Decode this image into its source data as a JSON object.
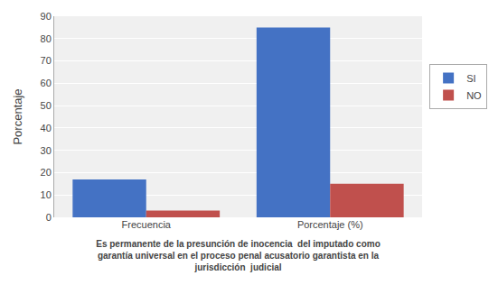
{
  "chart_data": {
    "type": "bar",
    "categories": [
      "Frecuencia",
      "Porcentaje (%)"
    ],
    "series": [
      {
        "name": "SI",
        "color": "#4472C4",
        "values": [
          17,
          85
        ]
      },
      {
        "name": "NO",
        "color": "#C0504D",
        "values": [
          3,
          15
        ]
      }
    ],
    "ylabel": "Porcentaje",
    "xlabel": "Es permanente de la presunción de inocencia  del imputado como\ngarantía universal en el proceso penal acusatorio garantista en la\njurisdicción  judicial",
    "ylim": [
      0,
      90
    ],
    "yticks": [
      0,
      10,
      20,
      30,
      40,
      50,
      60,
      70,
      80,
      90
    ],
    "grid": true,
    "legend": "right"
  }
}
